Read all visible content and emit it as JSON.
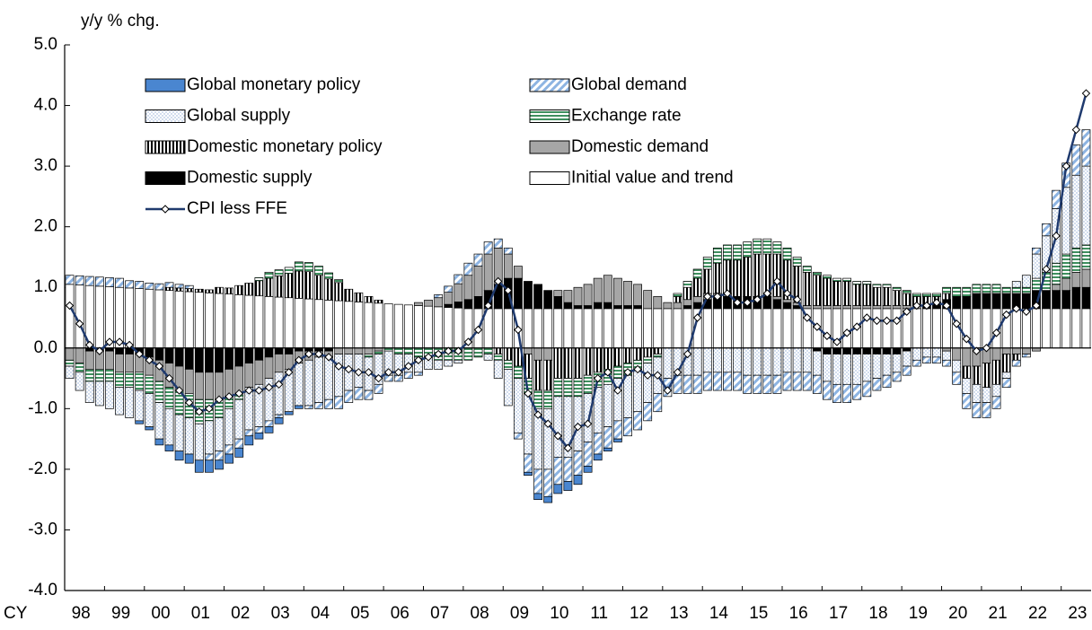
{
  "chart_data": {
    "type": "bar",
    "stacked": true,
    "y_label": "y/y % chg.",
    "x_label": "CY",
    "ylim": [
      -4,
      5
    ],
    "yticks": [
      {
        "value": -4,
        "label": "-4.0"
      },
      {
        "value": -3,
        "label": "-3.0"
      },
      {
        "value": -2,
        "label": "-2.0"
      },
      {
        "value": -1,
        "label": "-1.0"
      },
      {
        "value": 0,
        "label": "0.0"
      },
      {
        "value": 1,
        "label": "1.0"
      },
      {
        "value": 2,
        "label": "2.0"
      },
      {
        "value": 3,
        "label": "3.0"
      },
      {
        "value": 4,
        "label": "4.0"
      },
      {
        "value": 5,
        "label": "5.0"
      }
    ],
    "legend": "upper left",
    "categories": [
      "98",
      null,
      null,
      null,
      "99",
      null,
      null,
      null,
      "00",
      null,
      null,
      null,
      "01",
      null,
      null,
      null,
      "02",
      null,
      null,
      null,
      "03",
      null,
      null,
      null,
      "04",
      null,
      null,
      null,
      "05",
      null,
      null,
      null,
      "06",
      null,
      null,
      null,
      "07",
      null,
      null,
      null,
      "08",
      null,
      null,
      null,
      "09",
      null,
      null,
      null,
      "10",
      null,
      null,
      null,
      "11",
      null,
      null,
      null,
      "12",
      null,
      null,
      null,
      "13",
      null,
      null,
      null,
      "14",
      null,
      null,
      null,
      "15",
      null,
      null,
      null,
      "16",
      null,
      null,
      null,
      "17",
      null,
      null,
      null,
      "18",
      null,
      null,
      null,
      "19",
      null,
      null,
      null,
      "20",
      null,
      null,
      null,
      "21",
      null,
      null,
      null,
      "22",
      null,
      null,
      null,
      "23",
      null,
      null
    ],
    "series": [
      {
        "name": "Global monetary policy",
        "color": "#4a86d0",
        "pattern": "solid",
        "values": [
          0,
          0,
          0,
          0,
          0,
          0,
          0,
          -0.05,
          -0.05,
          -0.1,
          -0.1,
          -0.15,
          -0.15,
          -0.2,
          -0.2,
          -0.15,
          -0.15,
          -0.15,
          -0.15,
          -0.1,
          -0.1,
          -0.1,
          -0.05,
          -0.05,
          0,
          0,
          0,
          0,
          0,
          0,
          0,
          0,
          0,
          0,
          0,
          0,
          0,
          0,
          0,
          0,
          0,
          0,
          0,
          0,
          0,
          0,
          -0.05,
          -0.1,
          -0.1,
          -0.15,
          -0.15,
          -0.15,
          -0.1,
          -0.1,
          -0.05,
          -0.05,
          0,
          0,
          0,
          0,
          0,
          0,
          0,
          0,
          0,
          0,
          0,
          0,
          0,
          0,
          0,
          0,
          0,
          0,
          0,
          0,
          0,
          0,
          0,
          0,
          0,
          0,
          0,
          0,
          0,
          0,
          0,
          0,
          0,
          0,
          0,
          0,
          0,
          0,
          0,
          0,
          0,
          0,
          0,
          0,
          0,
          0,
          0
        ]
      },
      {
        "name": "Global demand",
        "color": "#8db4e2",
        "pattern": "diagonal",
        "values": [
          0.15,
          0.15,
          0.15,
          0.15,
          0.15,
          0.15,
          0.12,
          0.12,
          0.1,
          0.1,
          0.08,
          0.06,
          0.05,
          0,
          -0.1,
          -0.15,
          -0.15,
          -0.15,
          -0.1,
          -0.1,
          -0.1,
          -0.05,
          0,
          0,
          -0.05,
          -0.1,
          -0.15,
          -0.2,
          -0.2,
          -0.2,
          -0.15,
          -0.15,
          -0.1,
          -0.1,
          -0.1,
          -0.05,
          0,
          0.05,
          0.1,
          0.15,
          0.2,
          0.2,
          0.2,
          0.15,
          0.1,
          -0.1,
          -0.3,
          -0.4,
          -0.45,
          -0.45,
          -0.4,
          -0.4,
          -0.4,
          -0.35,
          -0.35,
          -0.3,
          -0.3,
          -0.3,
          -0.3,
          -0.3,
          -0.3,
          -0.3,
          -0.3,
          -0.3,
          -0.3,
          -0.3,
          -0.3,
          -0.3,
          -0.3,
          -0.3,
          -0.3,
          -0.3,
          -0.3,
          -0.3,
          -0.3,
          -0.3,
          -0.3,
          -0.3,
          -0.3,
          -0.25,
          -0.25,
          -0.2,
          -0.2,
          -0.15,
          -0.15,
          -0.1,
          -0.1,
          -0.1,
          -0.1,
          -0.2,
          -0.25,
          -0.25,
          -0.25,
          -0.2,
          -0.15,
          -0.1,
          -0.05,
          0.1,
          0.2,
          0.3,
          0.4,
          0.5,
          0.6
        ]
      },
      {
        "name": "Global supply",
        "color": "#8eaad4",
        "pattern": "dots",
        "values": [
          -0.2,
          -0.3,
          -0.35,
          -0.4,
          -0.45,
          -0.45,
          -0.5,
          -0.5,
          -0.55,
          -0.6,
          -0.6,
          -0.6,
          -0.6,
          -0.6,
          -0.55,
          -0.55,
          -0.6,
          -0.65,
          -0.7,
          -0.7,
          -0.7,
          -0.7,
          -0.7,
          -0.7,
          -0.75,
          -0.75,
          -0.7,
          -0.7,
          -0.6,
          -0.55,
          -0.55,
          -0.5,
          -0.4,
          -0.35,
          -0.3,
          -0.25,
          -0.2,
          -0.15,
          -0.1,
          -0.05,
          0,
          0,
          -0.1,
          -0.3,
          -0.6,
          -0.9,
          -1.0,
          -1.0,
          -1.0,
          -1.0,
          -1.0,
          -0.9,
          -0.8,
          -0.75,
          -0.7,
          -0.7,
          -0.7,
          -0.7,
          -0.65,
          -0.6,
          -0.5,
          -0.45,
          -0.45,
          -0.45,
          -0.4,
          -0.4,
          -0.4,
          -0.4,
          -0.45,
          -0.45,
          -0.45,
          -0.45,
          -0.4,
          -0.4,
          -0.4,
          -0.4,
          -0.45,
          -0.5,
          -0.5,
          -0.5,
          -0.45,
          -0.4,
          -0.35,
          -0.3,
          -0.25,
          -0.2,
          -0.15,
          -0.15,
          -0.15,
          -0.2,
          -0.25,
          -0.3,
          -0.25,
          -0.2,
          -0.1,
          0.1,
          0.2,
          0.4,
          0.6,
          0.9,
          1.1,
          1.2,
          1.3
        ]
      },
      {
        "name": "Exchange rate",
        "color": "#3f8f5f",
        "pattern": "hstripes",
        "values": [
          -0.1,
          -0.15,
          -0.2,
          -0.2,
          -0.2,
          -0.25,
          -0.25,
          -0.3,
          -0.3,
          -0.35,
          -0.35,
          -0.4,
          -0.4,
          -0.4,
          -0.35,
          -0.3,
          -0.2,
          -0.1,
          0,
          0.05,
          0.1,
          0.1,
          0.1,
          0.15,
          0.15,
          0.15,
          0.1,
          0.05,
          0,
          0,
          -0.05,
          -0.05,
          -0.05,
          -0.1,
          -0.1,
          -0.15,
          -0.15,
          -0.2,
          -0.2,
          -0.2,
          -0.2,
          -0.15,
          -0.1,
          -0.1,
          -0.15,
          -0.2,
          -0.25,
          -0.3,
          -0.3,
          -0.3,
          -0.3,
          -0.3,
          -0.3,
          -0.25,
          -0.25,
          -0.2,
          -0.2,
          -0.15,
          -0.1,
          -0.05,
          0,
          0.05,
          0.1,
          0.15,
          0.2,
          0.25,
          0.25,
          0.25,
          0.25,
          0.25,
          0.25,
          0.2,
          0.2,
          0.15,
          0.1,
          0.05,
          0.05,
          0.05,
          0.05,
          0.05,
          0.05,
          0.05,
          0.05,
          0.05,
          0.05,
          0.05,
          0.05,
          0.05,
          0.1,
          0.15,
          0.15,
          0.15,
          0.15,
          0.15,
          0.1,
          0.1,
          0.1,
          0.2,
          0.3,
          0.35,
          0.4,
          0.4,
          0.4
        ]
      },
      {
        "name": "Domestic monetary policy",
        "color": "#000000",
        "pattern": "vstripes",
        "values": [
          0,
          0,
          0,
          0,
          0,
          0,
          0,
          0,
          0,
          0,
          0.05,
          0.05,
          0.05,
          0.05,
          0.05,
          0.1,
          0.1,
          0.15,
          0.2,
          0.25,
          0.3,
          0.35,
          0.4,
          0.45,
          0.45,
          0.4,
          0.35,
          0.3,
          0.2,
          0.15,
          0.1,
          0.05,
          0,
          0,
          0,
          0,
          0,
          0,
          0,
          0,
          0,
          0,
          0,
          -0.1,
          -0.2,
          -0.3,
          -0.4,
          -0.5,
          -0.5,
          -0.5,
          -0.5,
          -0.5,
          -0.45,
          -0.4,
          -0.35,
          -0.3,
          -0.25,
          -0.2,
          -0.15,
          -0.1,
          0,
          0.1,
          0.2,
          0.3,
          0.4,
          0.5,
          0.55,
          0.6,
          0.65,
          0.7,
          0.7,
          0.7,
          0.65,
          0.6,
          0.55,
          0.5,
          0.45,
          0.4,
          0.4,
          0.35,
          0.35,
          0.3,
          0.3,
          0.25,
          0.2,
          0.15,
          0.15,
          0.1,
          0.1,
          0,
          -0.2,
          -0.3,
          -0.4,
          -0.4,
          -0.3,
          -0.1,
          0,
          0,
          0,
          0,
          0,
          0,
          0
        ]
      },
      {
        "name": "Domestic demand",
        "color": "#a6a6a6",
        "pattern": "solid",
        "values": [
          -0.2,
          -0.25,
          -0.3,
          -0.3,
          -0.3,
          -0.3,
          -0.3,
          -0.3,
          -0.3,
          -0.35,
          -0.4,
          -0.4,
          -0.4,
          -0.45,
          -0.45,
          -0.45,
          -0.45,
          -0.45,
          -0.4,
          -0.4,
          -0.35,
          -0.3,
          -0.25,
          -0.2,
          -0.15,
          -0.1,
          -0.1,
          -0.1,
          -0.1,
          -0.1,
          -0.1,
          -0.05,
          0,
          0,
          0,
          0.05,
          0.1,
          0.15,
          0.2,
          0.3,
          0.4,
          0.5,
          0.6,
          0.6,
          0.4,
          0.2,
          -0.1,
          -0.2,
          -0.2,
          0.1,
          0.2,
          0.3,
          0.35,
          0.4,
          0.45,
          0.45,
          0.4,
          0.35,
          0.3,
          0.2,
          0.1,
          0.1,
          0.1,
          0.1,
          0.1,
          0.05,
          0.05,
          0,
          0,
          0,
          0,
          0.05,
          0.05,
          0.05,
          0.05,
          0.05,
          0.05,
          0.05,
          0.05,
          0.05,
          0.05,
          0.05,
          0.05,
          0.05,
          0.05,
          0.05,
          0,
          0,
          -0.05,
          -0.2,
          -0.3,
          -0.3,
          -0.25,
          -0.2,
          -0.1,
          -0.1,
          -0.1,
          -0.05,
          0,
          0.1,
          0.2,
          0.25,
          0.3
        ]
      },
      {
        "name": "Domestic supply",
        "color": "#000000",
        "pattern": "solid",
        "values": [
          0,
          0,
          -0.05,
          -0.05,
          -0.05,
          -0.1,
          -0.1,
          -0.1,
          -0.15,
          -0.2,
          -0.25,
          -0.3,
          -0.35,
          -0.4,
          -0.4,
          -0.4,
          -0.35,
          -0.3,
          -0.25,
          -0.2,
          -0.15,
          -0.1,
          -0.1,
          -0.05,
          -0.05,
          -0.05,
          -0.05,
          0,
          0,
          0,
          0,
          0,
          0,
          0,
          0,
          0,
          0,
          0,
          0.05,
          0.1,
          0.15,
          0.2,
          0.3,
          0.4,
          0.5,
          0.5,
          0.45,
          0.4,
          0.3,
          0.2,
          0.1,
          0.05,
          0.05,
          0.1,
          0.1,
          0.05,
          0.05,
          0.05,
          0,
          0,
          0,
          0,
          0.05,
          0.1,
          0.15,
          0.2,
          0.2,
          0.2,
          0.2,
          0.2,
          0.2,
          0.15,
          0.1,
          0.05,
          0,
          -0.05,
          -0.1,
          -0.1,
          -0.1,
          -0.1,
          -0.1,
          -0.1,
          -0.1,
          -0.1,
          -0.05,
          0,
          0.05,
          0.1,
          0.15,
          0.2,
          0.2,
          0.25,
          0.25,
          0.25,
          0.25,
          0.25,
          0.25,
          0.3,
          0.3,
          0.3,
          0.3,
          0.35,
          0.35
        ]
      },
      {
        "name": "Initial value and trend",
        "color": "#ffffff",
        "pattern": "solid",
        "values": [
          1.05,
          1.04,
          1.03,
          1.02,
          1.01,
          1.0,
          0.99,
          0.98,
          0.97,
          0.96,
          0.95,
          0.94,
          0.93,
          0.92,
          0.91,
          0.9,
          0.89,
          0.88,
          0.87,
          0.86,
          0.85,
          0.84,
          0.83,
          0.82,
          0.81,
          0.8,
          0.79,
          0.78,
          0.77,
          0.76,
          0.75,
          0.74,
          0.73,
          0.72,
          0.71,
          0.7,
          0.69,
          0.68,
          0.67,
          0.66,
          0.65,
          0.65,
          0.65,
          0.65,
          0.65,
          0.65,
          0.65,
          0.65,
          0.65,
          0.65,
          0.65,
          0.65,
          0.65,
          0.65,
          0.65,
          0.65,
          0.65,
          0.65,
          0.65,
          0.65,
          0.65,
          0.65,
          0.65,
          0.65,
          0.65,
          0.65,
          0.65,
          0.65,
          0.65,
          0.65,
          0.65,
          0.65,
          0.65,
          0.65,
          0.65,
          0.65,
          0.65,
          0.65,
          0.65,
          0.65,
          0.65,
          0.65,
          0.65,
          0.65,
          0.65,
          0.65,
          0.65,
          0.65,
          0.65,
          0.65,
          0.65,
          0.65,
          0.65,
          0.65,
          0.65,
          0.65,
          0.65,
          0.65,
          0.65,
          0.65,
          0.65,
          0.65,
          0.65
        ]
      },
      {
        "name": "CPI less FFE",
        "color": "#1f3a6e",
        "type": "line",
        "values": [
          0.7,
          0.4,
          0.05,
          -0.05,
          0.1,
          0.1,
          0.05,
          -0.1,
          -0.2,
          -0.3,
          -0.5,
          -0.7,
          -0.9,
          -1.05,
          -1.0,
          -0.85,
          -0.8,
          -0.75,
          -0.7,
          -0.7,
          -0.65,
          -0.6,
          -0.4,
          -0.2,
          -0.1,
          -0.1,
          -0.15,
          -0.3,
          -0.35,
          -0.4,
          -0.4,
          -0.5,
          -0.4,
          -0.4,
          -0.3,
          -0.2,
          -0.15,
          -0.1,
          -0.05,
          -0.05,
          0.1,
          0.3,
          0.7,
          1.1,
          0.95,
          0.3,
          -0.75,
          -1.1,
          -1.25,
          -1.45,
          -1.65,
          -1.3,
          -1.25,
          -0.5,
          -0.4,
          -0.7,
          -0.4,
          -0.35,
          -0.45,
          -0.45,
          -0.7,
          -0.4,
          -0.1,
          0.5,
          0.85,
          0.85,
          0.9,
          0.75,
          0.75,
          0.8,
          0.9,
          1.1,
          0.9,
          0.8,
          0.5,
          0.35,
          0.2,
          0.1,
          0.25,
          0.35,
          0.5,
          0.45,
          0.45,
          0.45,
          0.6,
          0.7,
          0.7,
          0.75,
          0.7,
          0.4,
          0.15,
          -0.05,
          0.0,
          0.25,
          0.55,
          0.65,
          0.6,
          0.7,
          1.3,
          1.85,
          3.0,
          3.6,
          4.2
        ]
      }
    ]
  }
}
